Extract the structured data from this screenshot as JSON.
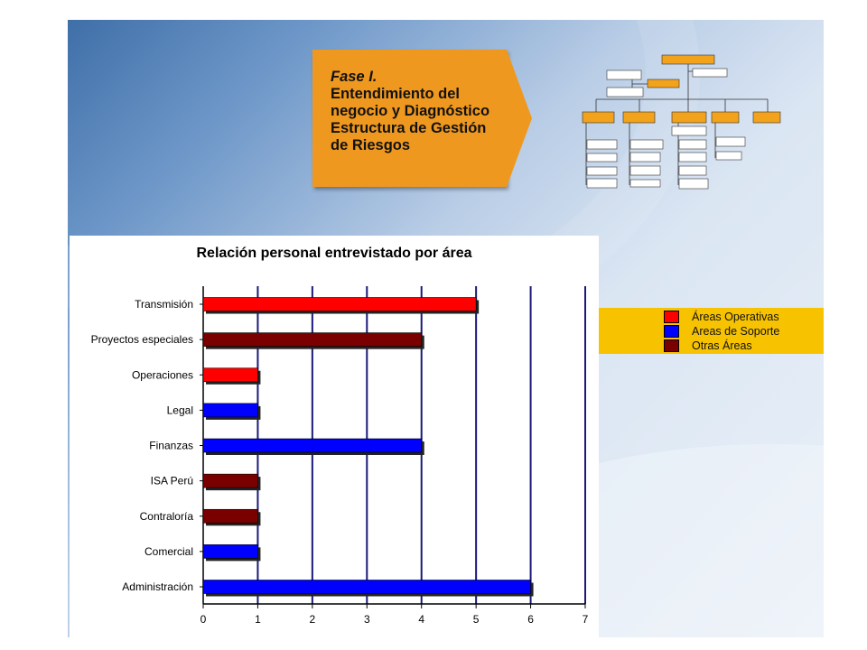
{
  "phase": {
    "title": "Fase I.",
    "body_lines": [
      "Entendimiento del",
      "negocio y Diagnóstico",
      "Estructura de Gestión",
      "de Riesgos"
    ]
  },
  "colors": {
    "operativas": "#ff0000",
    "soporte": "#0000ff",
    "otras": "#7a0000",
    "phase_box": "#ef9820",
    "legend_band": "#f7c300",
    "gridline": "#1a1a7a"
  },
  "legend": [
    {
      "label": "Áreas Operativas",
      "color": "#ff0000"
    },
    {
      "label": "Areas de Soporte",
      "color": "#0000ff"
    },
    {
      "label": "Otras Áreas",
      "color": "#7a0000"
    }
  ],
  "chart_data": {
    "type": "bar",
    "orientation": "horizontal",
    "title": "Relación personal entrevistado por área",
    "xlabel": "",
    "ylabel": "",
    "xlim": [
      0,
      7
    ],
    "xticks": [
      0,
      1,
      2,
      3,
      4,
      5,
      6,
      7
    ],
    "grid": true,
    "legend_position": "right",
    "categories": [
      "Transmisión",
      "Proyectos especiales",
      "Operaciones",
      "Legal",
      "Finanzas",
      "ISA Perú",
      "Contraloría",
      "Comercial",
      "Administración"
    ],
    "values": [
      5,
      4,
      1,
      1,
      4,
      1,
      1,
      1,
      6
    ],
    "groups": [
      "operativas",
      "otras",
      "operativas",
      "soporte",
      "soporte",
      "otras",
      "otras",
      "soporte",
      "soporte"
    ]
  }
}
